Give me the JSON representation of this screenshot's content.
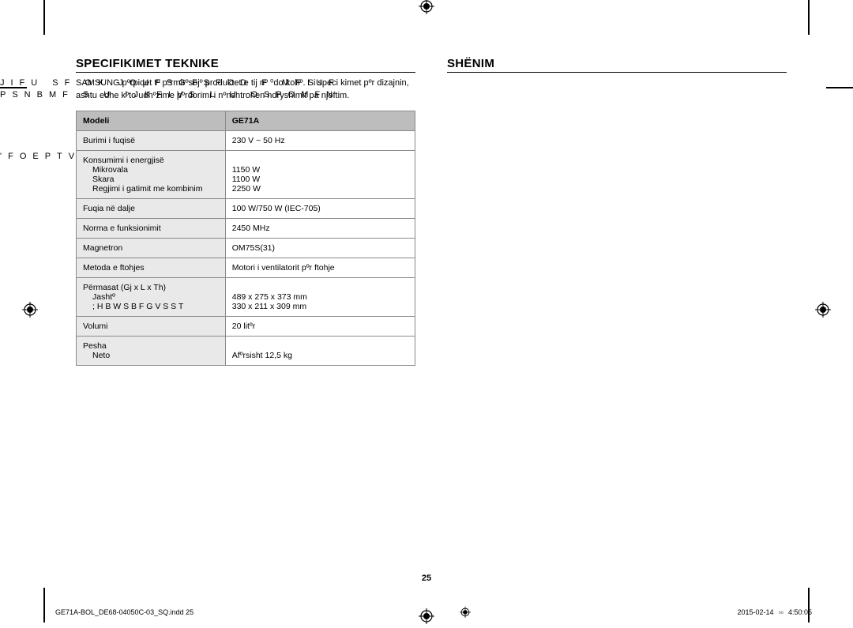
{
  "section_left_title": "SPECIFIKIMET TEKNIKE",
  "section_right_title": "SHËNIM",
  "intro": "SAMSUNG pºrpiqet tº pºrmirºsojº produktet e tij nº ⁰do kohº. Si speci kimet pºr dizajnin, ashtu edhe kºto udhºzime pºrdorimi i nºnshtrohen ndryshimit pa njoftim.",
  "table": {
    "header_left": "Modeli",
    "header_right": "GE71A",
    "rows": [
      {
        "name": "Burimi i fuqisë",
        "value": "230 V ~ 50 Hz"
      },
      {
        "name_lines": [
          "Konsumimi i energjisë",
          "Mikrovala",
          "Skara",
          "Regjimi i gatimit me kombinim"
        ],
        "value_lines": [
          "",
          "1150 W",
          "1100 W",
          "2250 W"
        ]
      },
      {
        "name": "Fuqia në dalje",
        "value": "100 W/750 W (IEC-705)"
      },
      {
        "name": "Norma e funksionimit",
        "value": "2450 MHz"
      },
      {
        "name": "Magnetron",
        "value": "OM75S(31)"
      },
      {
        "name": "Metoda e ftohjes",
        "value": "Motori i ventilatorit pºr ftohje"
      },
      {
        "name_lines": [
          "Përmasat (Gj x L x Th)",
          "Jashtº",
          "; H B W S B   F   G V S S   T"
        ],
        "value_lines": [
          "",
          "489 x 275 x 373 mm",
          "330 x 211 x 309 mm"
        ]
      },
      {
        "name": "Volumi",
        "value": "20 litºr"
      },
      {
        "name_lines": [
          "Pesha",
          "Neto"
        ],
        "value_lines": [
          "",
          "Afºrsisht 12,5 kg"
        ]
      }
    ]
  },
  "overlay": {
    "line1": "JIFU SF OK  JOUFSGFSFOD F  MFIUF",
    "line2": "PSNBMF  S U  IJKFIVS L U  OSPOMFN",
    "line3": "'FOEPTVSU                  F U"
  },
  "page_number": "25",
  "footer_left": "GE71A-BOL_DE68-04050C-03_SQ.indd   25",
  "footer_date": "2015-02-14",
  "footer_time": "4:50:05"
}
